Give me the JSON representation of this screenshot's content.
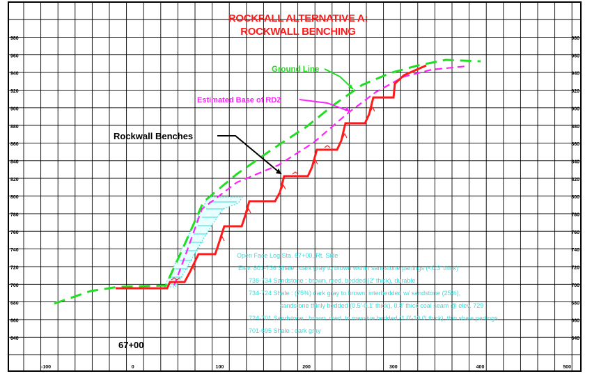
{
  "title": {
    "line1": "ROCKFALL ALTERNATIVE A:",
    "line2": "ROCKWALL BENCHING"
  },
  "elevation_labels": [
    "980",
    "960",
    "940",
    "920",
    "900",
    "880",
    "860",
    "840",
    "820",
    "800",
    "780",
    "760",
    "740",
    "720",
    "700",
    "680",
    "660",
    "640"
  ],
  "station_labels": [
    "-100",
    "0",
    "100",
    "200",
    "300",
    "400",
    "500"
  ],
  "annotations": {
    "ground_line": "Ground Line",
    "base_rdz": "Estimated Base of RDZ",
    "rockwall_benches": "Rockwall Benches",
    "station": "67+00"
  },
  "face_log": {
    "heading": "Open Face Log Sta. 67+00, Rt. Side",
    "lines": [
      "Elev. 801-736  Shale : dark gray to brown w/thin sandstone partings (<0.3' thick)",
      "736-734  Sandstone : brown, med. bedded (2' thick), durable",
      "734-724  Shale : (75%) dark gray to brown, interbedded w/ sandstone (25%),",
      "sandstone thinly bedded (0.5'-0.1' thick), 0.8' thick coal seam @ elev. 729",
      "724-701  Sandstone : brown, med. to massive bedded (1.0'-10.0' thick), thin shale partings",
      "701-695  Shale : dark gray"
    ]
  },
  "colors": {
    "ground_line": "#22dd22",
    "base_rdz": "#ff22ff",
    "benches": "#ff1a1a",
    "log_text": "#33dddd",
    "grid": "#000000"
  }
}
